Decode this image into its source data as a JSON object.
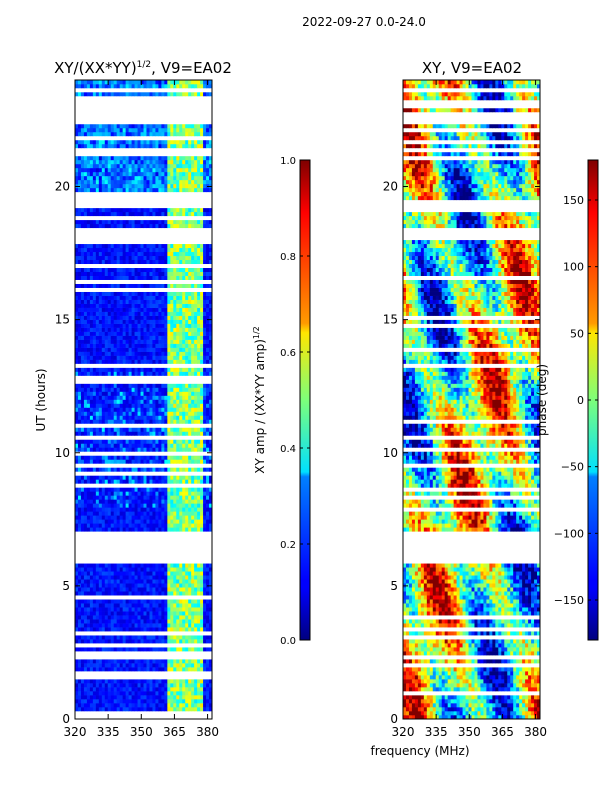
{
  "suptitle": "2022-09-27 0.0-24.0",
  "chart_data": [
    {
      "type": "heatmap",
      "title": "XY/(XX*YY)",
      "title_exponent": "1/2",
      "title_suffix": ", V9=EA02",
      "xlabel": "",
      "ylabel": "UT (hours)",
      "xlim": [
        320,
        382
      ],
      "ylim": [
        0,
        24
      ],
      "xticks": [
        "320",
        "335",
        "350",
        "365",
        "380"
      ],
      "xtick_values": [
        320,
        335,
        350,
        365,
        380
      ],
      "yticks": [
        "0",
        "5",
        "10",
        "15",
        "20"
      ],
      "ytick_values": [
        0,
        5,
        10,
        15,
        20
      ],
      "missing_time_ranges": [
        [
          5.9,
          7.0
        ],
        [
          19.2,
          19.5
        ],
        [
          18.0,
          18.5
        ],
        [
          22.3,
          22.8
        ],
        [
          23.0,
          23.3
        ]
      ],
      "bright_freq_band": [
        362,
        378
      ],
      "colorbar": {
        "label": "XY amp / (XX*YY amp)",
        "label_exponent": "1/2",
        "range": [
          0.0,
          1.0
        ],
        "ticks": [
          "0.0",
          "0.2",
          "0.4",
          "0.6",
          "0.8",
          "1.0"
        ],
        "tick_values": [
          0.0,
          0.2,
          0.4,
          0.6,
          0.8,
          1.0
        ]
      }
    },
    {
      "type": "heatmap",
      "title": "XY, V9=EA02",
      "xlabel": "frequency (MHz)",
      "ylabel": "",
      "xlim": [
        320,
        382
      ],
      "ylim": [
        0,
        24
      ],
      "xticks": [
        "320",
        "335",
        "350",
        "365",
        "380"
      ],
      "xtick_values": [
        320,
        335,
        350,
        365,
        380
      ],
      "yticks": [
        "0",
        "5",
        "10",
        "15",
        "20"
      ],
      "ytick_values": [
        0,
        5,
        10,
        15,
        20
      ],
      "missing_time_ranges": [
        [
          5.9,
          7.0
        ],
        [
          19.2,
          19.5
        ],
        [
          18.0,
          18.5
        ],
        [
          22.3,
          22.8
        ],
        [
          23.0,
          23.3
        ]
      ],
      "colorbar": {
        "label": "phase (deg)",
        "range": [
          -180,
          180
        ],
        "ticks": [
          "−150",
          "−100",
          "−50",
          "0",
          "50",
          "100",
          "150"
        ],
        "tick_values": [
          -150,
          -100,
          -50,
          0,
          50,
          100,
          150
        ]
      }
    }
  ]
}
